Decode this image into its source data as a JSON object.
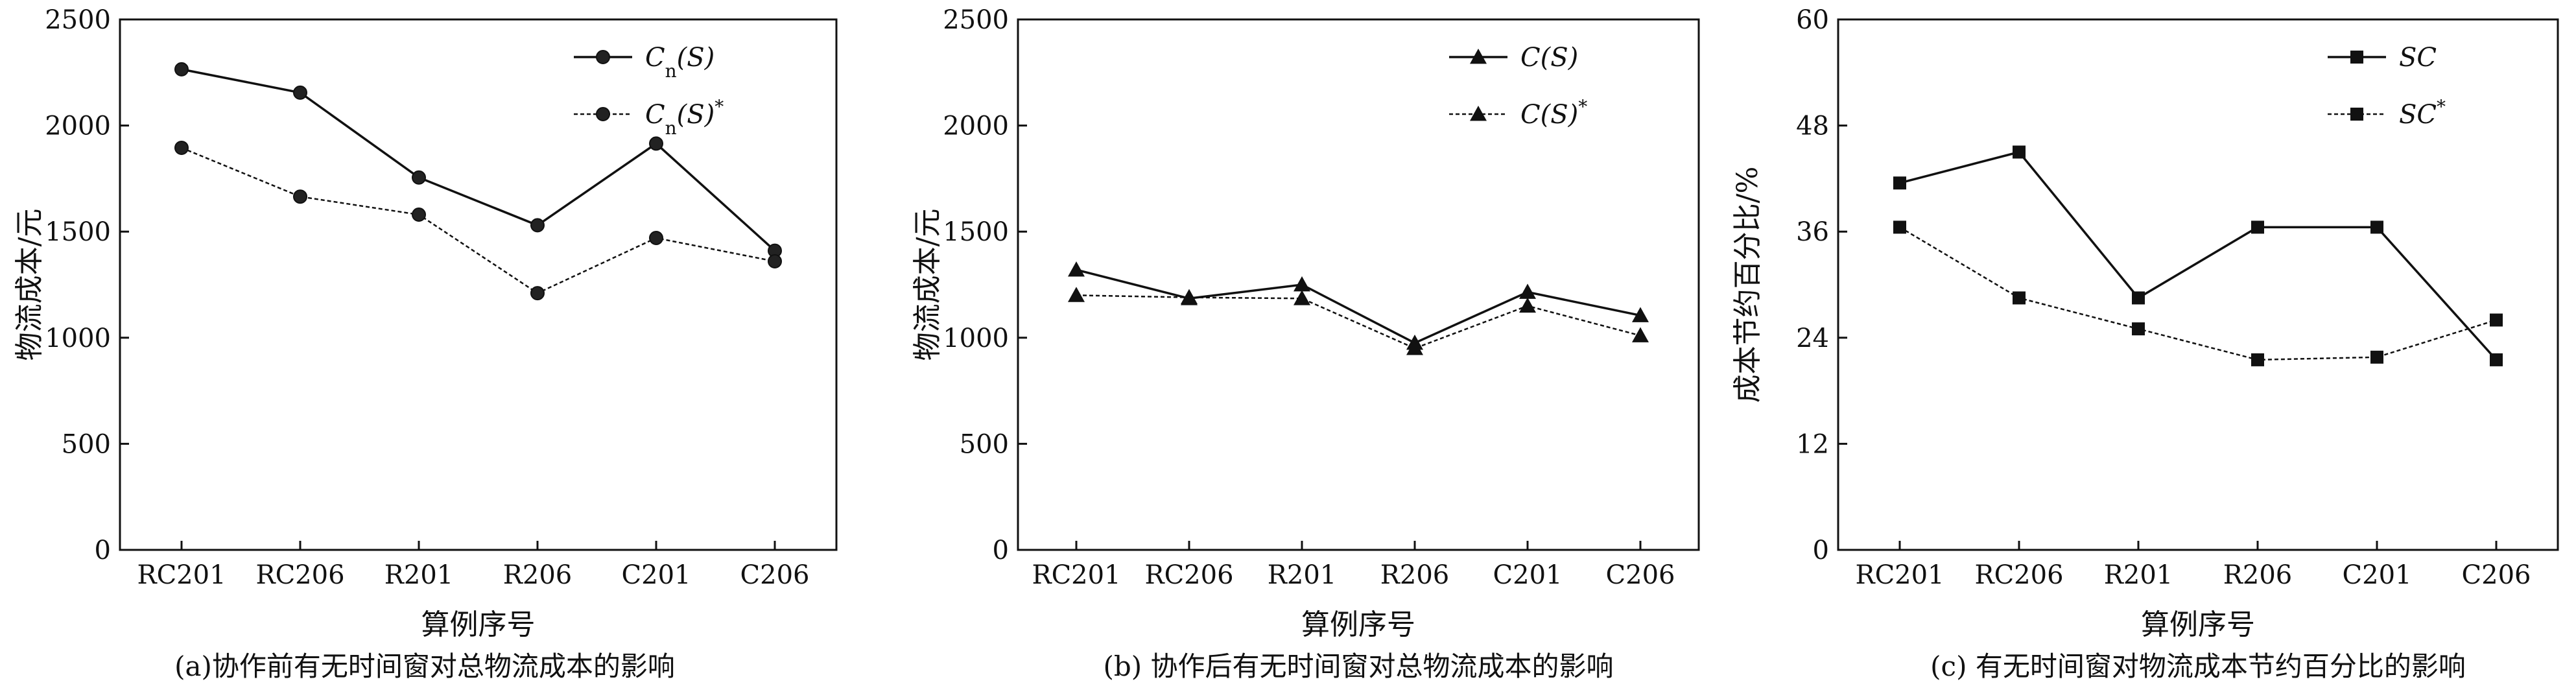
{
  "chart_data": [
    {
      "type": "line",
      "caption": "(a)协作前有无时间窗对总物流成本的影响",
      "xlabel": "算例序号",
      "ylabel": "物流成本/元",
      "categories": [
        "RC201",
        "RC206",
        "R201",
        "R206",
        "C201",
        "C206"
      ],
      "ylim": [
        0,
        2500
      ],
      "yticks": [
        "0",
        "500",
        "1000",
        "1500",
        "2000",
        "2500"
      ],
      "legend_position": "top-right",
      "marker": "circle",
      "series": [
        {
          "name": "Cn(S)",
          "legend_main": "C",
          "legend_sub": "n",
          "legend_rest": "(S)",
          "legend_sup": "",
          "style": "solid",
          "values": [
            2265,
            2155,
            1755,
            1530,
            1915,
            1410
          ]
        },
        {
          "name": "Cn(S)*",
          "legend_main": "C",
          "legend_sub": "n",
          "legend_rest": "(S)",
          "legend_sup": "*",
          "style": "dashed",
          "values": [
            1895,
            1665,
            1580,
            1210,
            1470,
            1360
          ]
        }
      ]
    },
    {
      "type": "line",
      "caption": "(b) 协作后有无时间窗对总物流成本的影响",
      "xlabel": "算例序号",
      "ylabel": "物流成本/元",
      "categories": [
        "RC201",
        "RC206",
        "R201",
        "R206",
        "C201",
        "C206"
      ],
      "ylim": [
        0,
        2500
      ],
      "yticks": [
        "0",
        "500",
        "1000",
        "1500",
        "2000",
        "2500"
      ],
      "legend_position": "top-right",
      "marker": "triangle",
      "series": [
        {
          "name": "C(S)",
          "legend_main": "C",
          "legend_sub": "",
          "legend_rest": "(S)",
          "legend_sup": "",
          "style": "solid",
          "values": [
            1320,
            1185,
            1250,
            975,
            1215,
            1105
          ]
        },
        {
          "name": "C(S)*",
          "legend_main": "C",
          "legend_sub": "",
          "legend_rest": "(S)",
          "legend_sup": "*",
          "style": "dashed",
          "values": [
            1200,
            1190,
            1185,
            950,
            1150,
            1010
          ]
        }
      ]
    },
    {
      "type": "line",
      "caption": "(c) 有无时间窗对物流成本节约百分比的影响",
      "xlabel": "算例序号",
      "ylabel": "成本节约百分比/%",
      "categories": [
        "RC201",
        "RC206",
        "R201",
        "R206",
        "C201",
        "C206"
      ],
      "ylim": [
        0,
        60
      ],
      "yticks": [
        "0",
        "12",
        "24",
        "36",
        "48",
        "60"
      ],
      "legend_position": "top-right",
      "marker": "square",
      "series": [
        {
          "name": "SC",
          "legend_main": "SC",
          "legend_sub": "",
          "legend_rest": "",
          "legend_sup": "",
          "style": "solid",
          "values": [
            41.5,
            45.0,
            28.5,
            36.5,
            36.5,
            21.5
          ]
        },
        {
          "name": "SC*",
          "legend_main": "SC",
          "legend_sub": "",
          "legend_rest": "",
          "legend_sup": "*",
          "style": "dashed",
          "values": [
            36.5,
            28.5,
            25.0,
            21.5,
            21.8,
            26.0
          ]
        }
      ]
    }
  ]
}
